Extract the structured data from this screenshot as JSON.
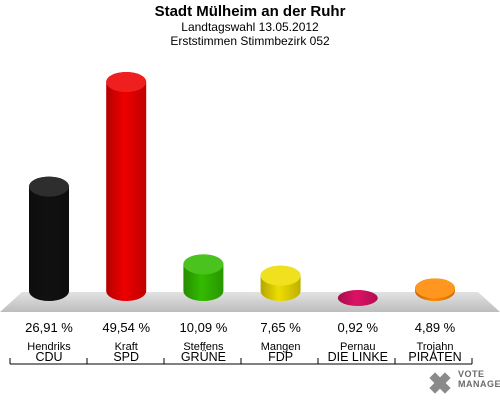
{
  "header": {
    "title": "Stadt Mülheim an der Ruhr",
    "subtitle1": "Landtagswahl 13.05.2012",
    "subtitle2": "Erststimmen Stimmbezirk 052"
  },
  "logo": {
    "line1": "VOTE",
    "line2": "MANAGER",
    "icon": "vote-manager-logo-icon"
  },
  "chart_data": {
    "type": "bar",
    "title": "Stadt Mülheim an der Ruhr",
    "subtitle": "Landtagswahl 13.05.2012 · Erststimmen Stimmbezirk 052",
    "categories": [
      "CDU",
      "SPD",
      "GRÜNE",
      "FDP",
      "DIE LINKE",
      "PIRATEN"
    ],
    "candidates": [
      "Hendriks",
      "Kraft",
      "Steffens",
      "Mangen",
      "Pernau",
      "Trojahn"
    ],
    "values": [
      26.91,
      49.54,
      10.09,
      7.65,
      0.92,
      4.89
    ],
    "value_labels": [
      "26,91 %",
      "49,54 %",
      "10,09 %",
      "7,65 %",
      "0,92 %",
      "4,89 %"
    ],
    "colors": [
      "#111111",
      "#ee0000",
      "#33bb00",
      "#eedd00",
      "#dd1166",
      "#ff8800"
    ],
    "unit": "%",
    "ylim": [
      0,
      49.54
    ],
    "grid": false,
    "legend": "none"
  }
}
